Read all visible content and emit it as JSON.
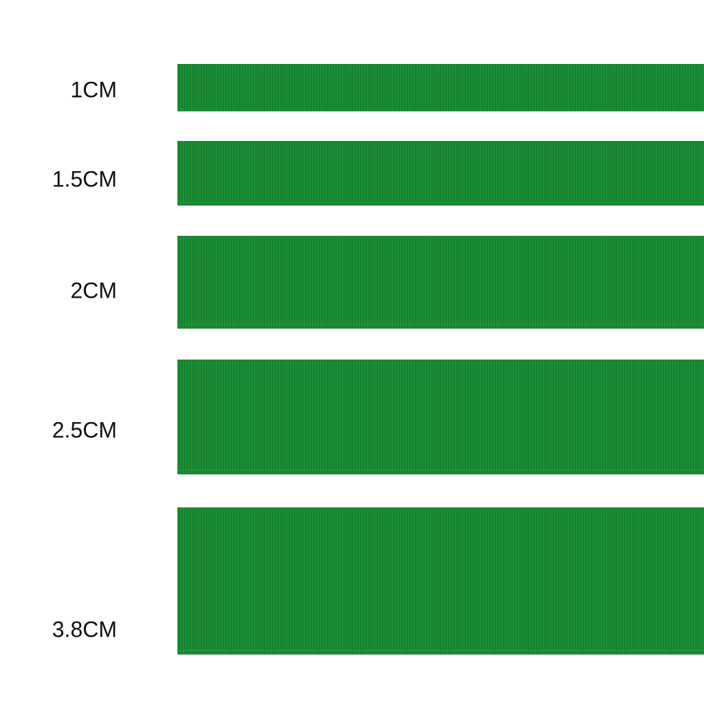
{
  "labels": [
    "1CM",
    "1.5CM",
    "2CM",
    "2.5CM",
    "3.8CM"
  ]
}
